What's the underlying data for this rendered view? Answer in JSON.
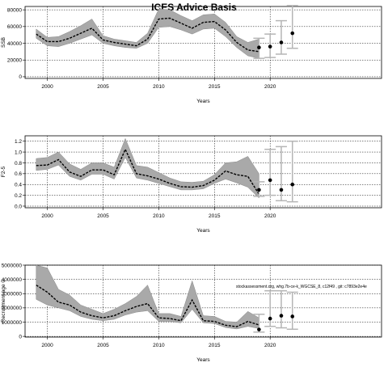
{
  "title": "ICES Advice Basis",
  "chart_data": [
    {
      "type": "line",
      "ylabel": "SSB",
      "xlabel": "Years",
      "xlim": [
        1998,
        2030
      ],
      "ylim": [
        -2000,
        84000
      ],
      "xticks": [
        2000,
        2005,
        2010,
        2015,
        2020
      ],
      "yticks": [
        0,
        20000,
        40000,
        60000,
        80000
      ],
      "grid": true,
      "series": [
        {
          "x": [
            1999,
            2000,
            2001,
            2002,
            2003,
            2004,
            2005,
            2006,
            2007,
            2008,
            2009,
            2010,
            2011,
            2012,
            2013,
            2014,
            2015,
            2016,
            2017,
            2018,
            2019
          ],
          "estimate": [
            51000,
            42000,
            42000,
            46000,
            52000,
            58000,
            44000,
            41000,
            39000,
            37000,
            45000,
            69000,
            70000,
            64000,
            58000,
            65000,
            66000,
            56000,
            41000,
            32000,
            30000
          ],
          "low": [
            46000,
            37000,
            36000,
            40000,
            45000,
            50000,
            40000,
            37000,
            35000,
            34000,
            40000,
            59000,
            60000,
            56000,
            51000,
            57000,
            58000,
            48000,
            35000,
            25000,
            22000
          ],
          "high": [
            57000,
            47000,
            48000,
            54000,
            61000,
            69000,
            49000,
            45000,
            43000,
            41000,
            52000,
            81000,
            80000,
            73000,
            67000,
            74000,
            75000,
            65000,
            48000,
            41000,
            45000
          ]
        }
      ],
      "points": [
        {
          "x": 2019,
          "y": 35000,
          "low": 22000,
          "high": 46000
        },
        {
          "x": 2020,
          "y": 36000,
          "low": 23000,
          "high": 51000
        },
        {
          "x": 2021,
          "y": 41000,
          "low": 27000,
          "high": 67000
        },
        {
          "x": 2022,
          "y": 52000,
          "low": 34000,
          "high": 85000
        }
      ]
    },
    {
      "type": "line",
      "ylabel": "F2-5",
      "xlabel": "Years",
      "xlim": [
        1998,
        2030
      ],
      "ylim": [
        -0.03,
        1.3
      ],
      "xticks": [
        2000,
        2005,
        2010,
        2015,
        2020
      ],
      "yticks": [
        0.0,
        0.2,
        0.4,
        0.6,
        0.8,
        1.0,
        1.2
      ],
      "ytick_labels": [
        "0.0",
        "0.2",
        "0.4",
        "0.6",
        "0.8",
        "1.0",
        "1.2"
      ],
      "grid": true,
      "series": [
        {
          "x": [
            1999,
            2000,
            2001,
            2002,
            2003,
            2004,
            2005,
            2006,
            2007,
            2008,
            2009,
            2010,
            2011,
            2012,
            2013,
            2014,
            2015,
            2016,
            2017,
            2018,
            2019
          ],
          "estimate": [
            0.75,
            0.76,
            0.86,
            0.63,
            0.55,
            0.67,
            0.67,
            0.58,
            1.05,
            0.6,
            0.56,
            0.5,
            0.42,
            0.36,
            0.35,
            0.38,
            0.48,
            0.65,
            0.58,
            0.55,
            0.22
          ],
          "low": [
            0.66,
            0.68,
            0.76,
            0.55,
            0.48,
            0.59,
            0.59,
            0.5,
            0.9,
            0.52,
            0.48,
            0.42,
            0.36,
            0.3,
            0.3,
            0.32,
            0.42,
            0.5,
            0.43,
            0.35,
            0.15
          ],
          "high": [
            0.88,
            0.9,
            1.0,
            0.78,
            0.68,
            0.8,
            0.8,
            0.72,
            1.25,
            0.75,
            0.72,
            0.62,
            0.52,
            0.45,
            0.44,
            0.46,
            0.58,
            0.8,
            0.82,
            0.92,
            0.6
          ]
        }
      ],
      "points": [
        {
          "x": 2019,
          "y": 0.3,
          "low": 0.18,
          "high": 0.45
        },
        {
          "x": 2020,
          "y": 0.48,
          "low": 0.2,
          "high": 1.05
        },
        {
          "x": 2021,
          "y": 0.3,
          "low": 0.1,
          "high": 1.1
        },
        {
          "x": 2022,
          "y": 0.4,
          "low": 0.08,
          "high": 1.2
        }
      ]
    },
    {
      "type": "line",
      "ylabel": "Recruitment age 0",
      "xlabel": "Years",
      "xlim": [
        1998,
        2030
      ],
      "ylim": [
        -50000,
        5000000
      ],
      "xticks": [
        2000,
        2005,
        2010,
        2015,
        2020
      ],
      "yticks": [
        0,
        1000000,
        2000000,
        3000000,
        4000000,
        5000000
      ],
      "ytick_labels": [
        "0",
        "1000000",
        "2000000",
        "3000000",
        "4000000",
        "5000000"
      ],
      "grid": true,
      "annotation": "stockassessment.org, whg.7b-ce-k_WGCSE_8, c12f49 , git: c7893e2e4e",
      "series": [
        {
          "x": [
            1999,
            2000,
            2001,
            2002,
            2003,
            2004,
            2005,
            2006,
            2007,
            2008,
            2009,
            2010,
            2011,
            2012,
            2013,
            2014,
            2015,
            2016,
            2017,
            2018,
            2019
          ],
          "estimate": [
            3600000,
            3100000,
            2400000,
            2200000,
            1700000,
            1450000,
            1300000,
            1450000,
            1800000,
            2100000,
            2300000,
            1300000,
            1250000,
            1100000,
            2550000,
            1100000,
            1050000,
            780000,
            680000,
            1050000,
            800000
          ],
          "low": [
            2600000,
            2200000,
            2000000,
            1800000,
            1400000,
            1200000,
            1100000,
            1200000,
            1500000,
            1700000,
            1800000,
            1050000,
            1050000,
            950000,
            1900000,
            950000,
            900000,
            620000,
            520000,
            700000,
            550000
          ],
          "high": [
            5000000,
            4800000,
            3300000,
            2900000,
            2200000,
            1900000,
            1600000,
            1900000,
            2300000,
            2800000,
            3600000,
            1600000,
            1600000,
            1400000,
            3900000,
            1450000,
            1400000,
            1050000,
            1000000,
            1750000,
            1300000
          ]
        }
      ],
      "points": [
        {
          "x": 2019,
          "y": 480000,
          "low": 300000,
          "high": 1550000
        },
        {
          "x": 2020,
          "y": 1250000,
          "low": 700000,
          "high": 3200000
        },
        {
          "x": 2021,
          "y": 1450000,
          "low": 600000,
          "high": 3200000
        },
        {
          "x": 2022,
          "y": 1400000,
          "low": 500000,
          "high": 3100000
        }
      ]
    }
  ]
}
